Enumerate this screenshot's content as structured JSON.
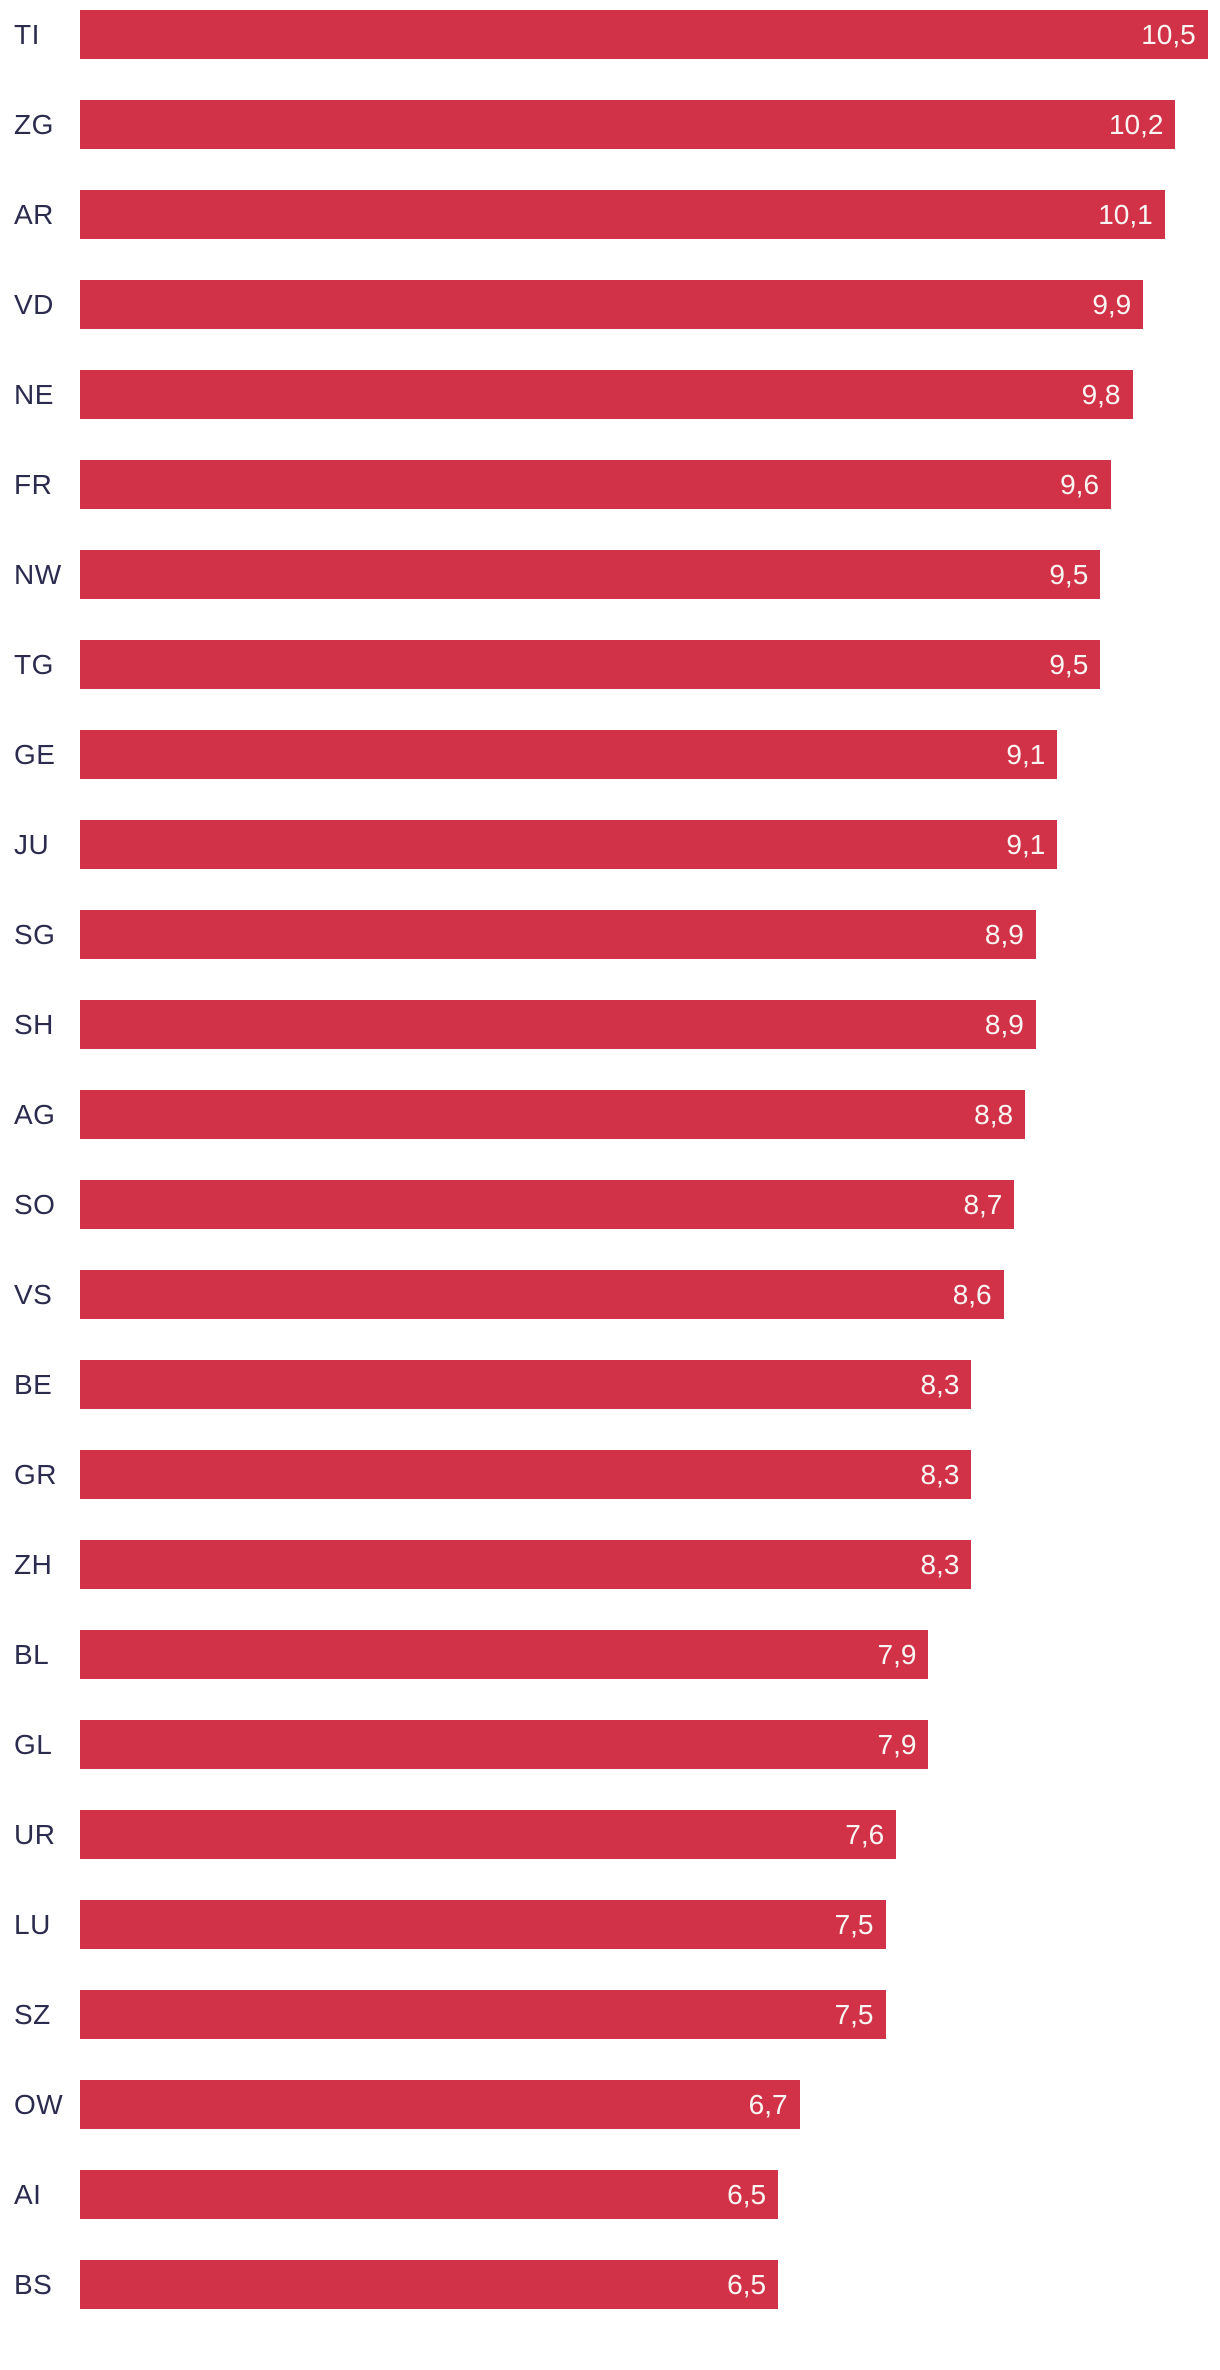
{
  "chart_data": {
    "type": "bar",
    "orientation": "horizontal",
    "title": "",
    "xlabel": "",
    "ylabel": "",
    "grid": "off",
    "legend": "none",
    "xlim": [
      0,
      10.7
    ],
    "value_label_position": "inside-end",
    "decimal_separator": "comma",
    "bar_color": "#d23248",
    "category_label_color": "#2b2b4e",
    "value_label_color": "#f9f5f2",
    "categories": [
      "TI",
      "ZG",
      "AR",
      "VD",
      "NE",
      "FR",
      "NW",
      "TG",
      "GE",
      "JU",
      "SG",
      "SH",
      "AG",
      "SO",
      "VS",
      "BE",
      "GR",
      "ZH",
      "BL",
      "GL",
      "UR",
      "LU",
      "SZ",
      "OW",
      "AI",
      "BS"
    ],
    "values": [
      10.5,
      10.2,
      10.1,
      9.9,
      9.8,
      9.6,
      9.5,
      9.5,
      9.1,
      9.1,
      8.9,
      8.9,
      8.8,
      8.7,
      8.6,
      8.3,
      8.3,
      8.3,
      7.9,
      7.9,
      7.6,
      7.5,
      7.5,
      6.7,
      6.5,
      6.5
    ],
    "value_labels": [
      "10,5",
      "10,2",
      "10,1",
      "9,9",
      "9,8",
      "9,6",
      "9,5",
      "9,5",
      "9,1",
      "9,1",
      "8,9",
      "8,9",
      "8,8",
      "8,7",
      "8,6",
      "8,3",
      "8,3",
      "8,3",
      "7,9",
      "7,9",
      "7,6",
      "7,5",
      "7,5",
      "6,7",
      "6,5",
      "6,5"
    ]
  }
}
